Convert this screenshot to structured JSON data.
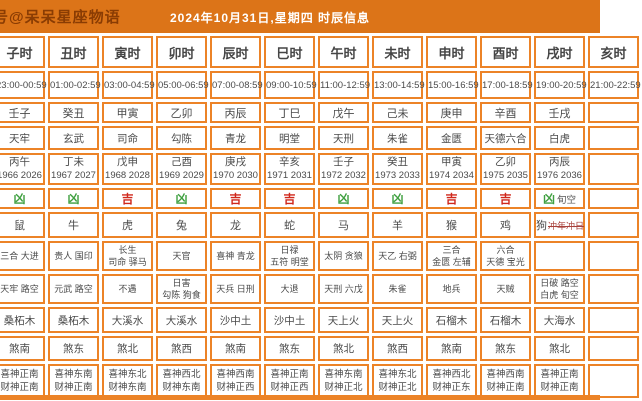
{
  "header": {
    "watermark": "号@呆呆星座物语",
    "title": "2024年10月31日,星期四 时辰信息"
  },
  "colors": {
    "header_bg": "#dc7418",
    "watermark_text": "#8a3c03",
    "grid_border": "#ec8327",
    "lucky_red": "#d0281c",
    "unlucky_green": "#3fa040",
    "clash_red": "#a8403a"
  },
  "luck_labels": {
    "lucky": "吉",
    "unlucky": "凶"
  },
  "columns": [
    {
      "hour": "子时",
      "time": "23:00-00:59",
      "ganzhi": "壬子",
      "shen": "天牢",
      "chong_ganzhi": "丙午",
      "chong_years": "1966 2026",
      "luck": "凶",
      "luck_extra": "",
      "animal": "鼠",
      "animal_extra": "",
      "jishen": [
        "三合 大进"
      ],
      "xiongshen": [
        "天牢 路空"
      ],
      "nayin": "桑柘木",
      "sha": "煞南",
      "xishen": "喜神正南",
      "caishen": "财神正南"
    },
    {
      "hour": "丑时",
      "time": "01:00-02:59",
      "ganzhi": "癸丑",
      "shen": "玄武",
      "chong_ganzhi": "丁未",
      "chong_years": "1967 2027",
      "luck": "凶",
      "luck_extra": "",
      "animal": "牛",
      "animal_extra": "",
      "jishen": [
        "贵人 国印"
      ],
      "xiongshen": [
        "元武 路空"
      ],
      "nayin": "桑柘木",
      "sha": "煞东",
      "xishen": "喜神东南",
      "caishen": "财神正南"
    },
    {
      "hour": "寅时",
      "time": "03:00-04:59",
      "ganzhi": "甲寅",
      "shen": "司命",
      "chong_ganzhi": "戊申",
      "chong_years": "1968 2028",
      "luck": "吉",
      "luck_extra": "",
      "animal": "虎",
      "animal_extra": "",
      "jishen": [
        "长生",
        "司命 驿马"
      ],
      "xiongshen": [
        "不遇"
      ],
      "nayin": "大溪水",
      "sha": "煞北",
      "xishen": "喜神东北",
      "caishen": "财神东南"
    },
    {
      "hour": "卯时",
      "time": "05:00-06:59",
      "ganzhi": "乙卯",
      "shen": "勾陈",
      "chong_ganzhi": "己酉",
      "chong_years": "1969 2029",
      "luck": "凶",
      "luck_extra": "",
      "animal": "兔",
      "animal_extra": "",
      "jishen": [
        "天官"
      ],
      "xiongshen": [
        "日害",
        "勾陈 狗食"
      ],
      "nayin": "大溪水",
      "sha": "煞西",
      "xishen": "喜神西北",
      "caishen": "财神东南"
    },
    {
      "hour": "辰时",
      "time": "07:00-08:59",
      "ganzhi": "丙辰",
      "shen": "青龙",
      "chong_ganzhi": "庚戌",
      "chong_years": "1970 2030",
      "luck": "吉",
      "luck_extra": "",
      "animal": "龙",
      "animal_extra": "",
      "jishen": [
        "喜神 青龙"
      ],
      "xiongshen": [
        "天兵 日刑"
      ],
      "nayin": "沙中土",
      "sha": "煞南",
      "xishen": "喜神西南",
      "caishen": "财神正西"
    },
    {
      "hour": "巳时",
      "time": "09:00-10:59",
      "ganzhi": "丁巳",
      "shen": "明堂",
      "chong_ganzhi": "辛亥",
      "chong_years": "1971 2031",
      "luck": "吉",
      "luck_extra": "",
      "animal": "蛇",
      "animal_extra": "",
      "jishen": [
        "日禄",
        "五符 明堂"
      ],
      "xiongshen": [
        "大退"
      ],
      "nayin": "沙中土",
      "sha": "煞东",
      "xishen": "喜神正南",
      "caishen": "财神正西"
    },
    {
      "hour": "午时",
      "time": "11:00-12:59",
      "ganzhi": "戊午",
      "shen": "天刑",
      "chong_ganzhi": "壬子",
      "chong_years": "1972 2032",
      "luck": "凶",
      "luck_extra": "",
      "animal": "马",
      "animal_extra": "",
      "jishen": [
        "太阴 贪狼"
      ],
      "xiongshen": [
        "天刑 六戊"
      ],
      "nayin": "天上火",
      "sha": "煞北",
      "xishen": "喜神东南",
      "caishen": "财神正北"
    },
    {
      "hour": "未时",
      "time": "13:00-14:59",
      "ganzhi": "己未",
      "shen": "朱雀",
      "chong_ganzhi": "癸丑",
      "chong_years": "1973 2033",
      "luck": "凶",
      "luck_extra": "",
      "animal": "羊",
      "animal_extra": "",
      "jishen": [
        "天乙 右弼"
      ],
      "xiongshen": [
        "朱雀"
      ],
      "nayin": "天上火",
      "sha": "煞西",
      "xishen": "喜神东北",
      "caishen": "财神正北"
    },
    {
      "hour": "申时",
      "time": "15:00-16:59",
      "ganzhi": "庚申",
      "shen": "金匮",
      "chong_ganzhi": "甲寅",
      "chong_years": "1974 2034",
      "luck": "吉",
      "luck_extra": "",
      "animal": "猴",
      "animal_extra": "",
      "jishen": [
        "三合",
        "金匮 左辅"
      ],
      "xiongshen": [
        "地兵"
      ],
      "nayin": "石榴木",
      "sha": "煞南",
      "xishen": "喜神西北",
      "caishen": "财神正东"
    },
    {
      "hour": "酉时",
      "time": "17:00-18:59",
      "ganzhi": "辛酉",
      "shen": "天德六合",
      "chong_ganzhi": "乙卯",
      "chong_years": "1975 2035",
      "luck": "吉",
      "luck_extra": "",
      "animal": "鸡",
      "animal_extra": "",
      "jishen": [
        "六合",
        "天德 宝光"
      ],
      "xiongshen": [
        "天贼"
      ],
      "nayin": "石榴木",
      "sha": "煞东",
      "xishen": "喜神西南",
      "caishen": "财神正南"
    },
    {
      "hour": "戌时",
      "time": "19:00-20:59",
      "ganzhi": "壬戌",
      "shen": "白虎",
      "chong_ganzhi": "丙辰",
      "chong_years": "1976 2036",
      "luck": "凶",
      "luck_extra": "旬空",
      "animal": "狗",
      "animal_extra": "冲年冲日",
      "jishen": [],
      "xiongshen": [
        "日破 路空",
        "白虎 旬空"
      ],
      "nayin": "大海水",
      "sha": "煞北",
      "xishen": "喜神正南",
      "caishen": "财神正南"
    },
    {
      "hour": "亥时",
      "time": "21:00-22:59",
      "ganzhi": "",
      "shen": "",
      "chong_ganzhi": "",
      "chong_years": "",
      "luck": "",
      "luck_extra": "",
      "animal": "",
      "animal_extra": "",
      "jishen": [],
      "xiongshen": [],
      "nayin": "",
      "sha": "",
      "xishen": "",
      "caishen": ""
    }
  ]
}
